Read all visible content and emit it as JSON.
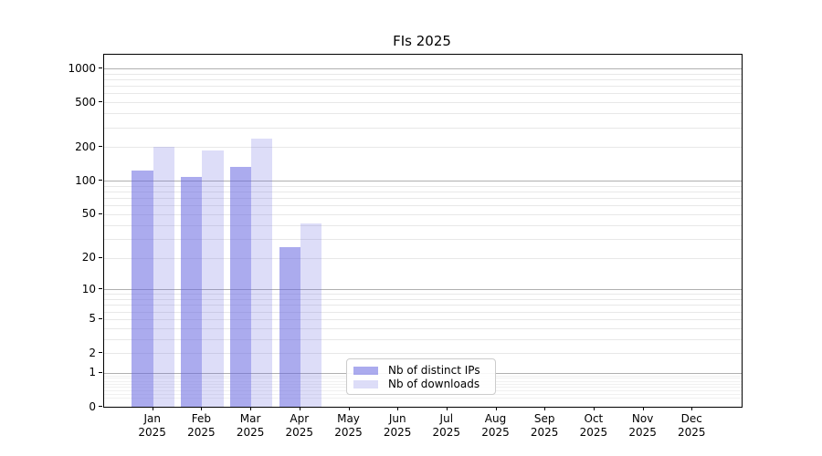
{
  "title": "FIs 2025",
  "chart_data": {
    "type": "bar",
    "title": "FIs 2025",
    "categories": [
      "Jan 2025",
      "Feb 2025",
      "Mar 2025",
      "Apr 2025",
      "May 2025",
      "Jun 2025",
      "Jul 2025",
      "Aug 2025",
      "Sep 2025",
      "Oct 2025",
      "Nov 2025",
      "Dec 2025"
    ],
    "x_tick_labels": [
      {
        "line1": "Jan",
        "line2": "2025"
      },
      {
        "line1": "Feb",
        "line2": "2025"
      },
      {
        "line1": "Mar",
        "line2": "2025"
      },
      {
        "line1": "Apr",
        "line2": "2025"
      },
      {
        "line1": "May",
        "line2": "2025"
      },
      {
        "line1": "Jun",
        "line2": "2025"
      },
      {
        "line1": "Jul",
        "line2": "2025"
      },
      {
        "line1": "Aug",
        "line2": "2025"
      },
      {
        "line1": "Sep",
        "line2": "2025"
      },
      {
        "line1": "Oct",
        "line2": "2025"
      },
      {
        "line1": "Nov",
        "line2": "2025"
      },
      {
        "line1": "Dec",
        "line2": "2025"
      }
    ],
    "series": [
      {
        "name": "Nb of distinct IPs",
        "color": "rgba(102,102,224,0.55)",
        "values": [
          124,
          108,
          134,
          25,
          0,
          0,
          0,
          0,
          0,
          0,
          0,
          0
        ]
      },
      {
        "name": "Nb of downloads",
        "color": "rgba(102,102,224,0.22)",
        "values": [
          202,
          187,
          238,
          41,
          0,
          0,
          0,
          0,
          0,
          0,
          0,
          0
        ]
      }
    ],
    "y_axis": {
      "scale": "log1p",
      "tick_values": [
        1000,
        500,
        200,
        100,
        50,
        20,
        10,
        5,
        2,
        1,
        0
      ],
      "tick_labels": [
        "1000",
        "500",
        "200",
        "100",
        "50",
        "20",
        "10",
        "5",
        "2",
        "1",
        "0"
      ],
      "major_gridlines": [
        1,
        10,
        100,
        1000
      ],
      "minor_gridlines": [
        0.2,
        0.3,
        0.4,
        0.5,
        0.6,
        0.7,
        0.8,
        0.9,
        2,
        3,
        4,
        5,
        6,
        7,
        8,
        9,
        20,
        30,
        40,
        50,
        60,
        70,
        80,
        90,
        200,
        300,
        400,
        500,
        600,
        700,
        800,
        900
      ],
      "ylim": [
        0,
        1320
      ]
    },
    "legend": {
      "position": "lower center",
      "entries": [
        "Nb of distinct IPs",
        "Nb of downloads"
      ]
    },
    "grid": true,
    "colors": {
      "bar_dark": "rgba(102,102,224,0.55)",
      "bar_light": "rgba(102,102,224,0.22)",
      "major_grid": "#b0b0b0",
      "minor_grid": "#e8e8e8",
      "axis": "#000000",
      "background": "#ffffff"
    }
  }
}
